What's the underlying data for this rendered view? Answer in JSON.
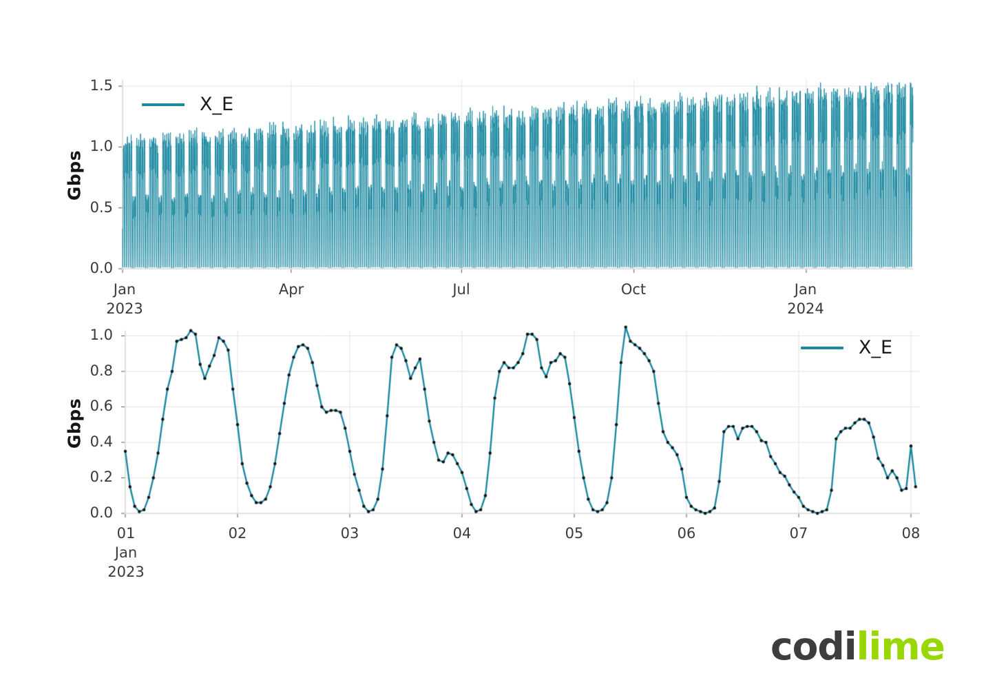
{
  "page": {
    "background": "#ffffff"
  },
  "brand": {
    "logo_left": "codi",
    "logo_right": "lime",
    "logo_left_color": "#3d3d3d",
    "logo_right_color": "#98d700"
  },
  "chart_data": [
    {
      "type": "line",
      "series_name": "X_E",
      "line_color": "#1a88a0",
      "ylabel": "Gbps",
      "ylim": [
        0,
        1.55
      ],
      "y_ticks": [
        0.0,
        0.5,
        1.0,
        1.5
      ],
      "y_tick_labels": [
        "0.0",
        "0.5",
        "1.0",
        "1.5"
      ],
      "x_tick_labels": [
        [
          "Jan",
          "2023"
        ],
        [
          "Apr"
        ],
        [
          "Jul"
        ],
        [
          "Oct"
        ],
        [
          "Jan",
          "2024"
        ]
      ],
      "x_tick_day_offsets": [
        0,
        90,
        181,
        273,
        365
      ],
      "x_range_days": 422,
      "grid": true,
      "legend_position": "top-left",
      "description": "Hourly traffic from Jan 2023 to late Feb 2024; daily cycles near zero at night, weekday peaks grow from about 1.05 to 1.5 Gbps, weekend peaks about 55% of weekdays",
      "synth": {
        "points_per_day": 24,
        "daily_profile": [
          0.34,
          0.15,
          0.04,
          0.01,
          0.02,
          0.09,
          0.19,
          0.33,
          0.51,
          0.68,
          0.78,
          0.94,
          0.95,
          0.96,
          1.0,
          0.98,
          0.82,
          0.74,
          0.81,
          0.86,
          0.96,
          0.94,
          0.89,
          0.68
        ],
        "weekend_days": [
          5,
          6
        ],
        "weekend_factor": 0.55,
        "peak_start": 1.05,
        "peak_end": 1.5,
        "seed": 7
      }
    },
    {
      "type": "line_markers",
      "series_name": "X_E",
      "line_color": "#1a88a0",
      "marker_color": "#111111",
      "ylabel": "Gbps",
      "ylim": [
        0,
        1.08
      ],
      "y_ticks": [
        0.0,
        0.2,
        0.4,
        0.6,
        0.8,
        1.0
      ],
      "y_tick_labels": [
        "0.0",
        "0.2",
        "0.4",
        "0.6",
        "0.8",
        "1.0"
      ],
      "x_tick_labels": [
        [
          "01",
          "Jan",
          "2023"
        ],
        [
          "02"
        ],
        [
          "03"
        ],
        [
          "04"
        ],
        [
          "05"
        ],
        [
          "06"
        ],
        [
          "07"
        ],
        [
          "08"
        ]
      ],
      "grid": true,
      "legend_position": "top-right",
      "points_per_day": 24,
      "x_start_day": 1,
      "values_gbps": [
        0.35,
        0.15,
        0.04,
        0.01,
        0.02,
        0.09,
        0.2,
        0.34,
        0.53,
        0.7,
        0.8,
        0.97,
        0.98,
        0.99,
        1.03,
        1.01,
        0.84,
        0.76,
        0.83,
        0.89,
        0.99,
        0.97,
        0.92,
        0.7,
        0.5,
        0.28,
        0.17,
        0.1,
        0.06,
        0.06,
        0.08,
        0.15,
        0.28,
        0.45,
        0.62,
        0.78,
        0.88,
        0.94,
        0.95,
        0.93,
        0.85,
        0.72,
        0.6,
        0.57,
        0.58,
        0.58,
        0.57,
        0.48,
        0.35,
        0.22,
        0.13,
        0.04,
        0.01,
        0.02,
        0.08,
        0.25,
        0.55,
        0.88,
        0.95,
        0.93,
        0.86,
        0.76,
        0.82,
        0.87,
        0.7,
        0.52,
        0.4,
        0.3,
        0.29,
        0.34,
        0.33,
        0.28,
        0.23,
        0.14,
        0.05,
        0.01,
        0.02,
        0.1,
        0.34,
        0.65,
        0.8,
        0.85,
        0.82,
        0.82,
        0.85,
        0.9,
        1.01,
        1.01,
        0.98,
        0.82,
        0.77,
        0.85,
        0.86,
        0.9,
        0.88,
        0.73,
        0.54,
        0.35,
        0.2,
        0.08,
        0.02,
        0.01,
        0.02,
        0.06,
        0.2,
        0.5,
        0.85,
        1.05,
        0.97,
        0.95,
        0.93,
        0.9,
        0.86,
        0.8,
        0.62,
        0.46,
        0.4,
        0.37,
        0.33,
        0.25,
        0.09,
        0.04,
        0.02,
        0.01,
        0.0,
        0.01,
        0.03,
        0.18,
        0.46,
        0.49,
        0.49,
        0.42,
        0.48,
        0.49,
        0.49,
        0.46,
        0.41,
        0.4,
        0.32,
        0.28,
        0.23,
        0.21,
        0.16,
        0.12,
        0.09,
        0.04,
        0.02,
        0.01,
        0.0,
        0.01,
        0.02,
        0.13,
        0.42,
        0.46,
        0.48,
        0.48,
        0.51,
        0.53,
        0.53,
        0.51,
        0.43,
        0.31,
        0.27,
        0.2,
        0.24,
        0.2,
        0.13,
        0.14,
        0.38,
        0.15
      ]
    }
  ]
}
